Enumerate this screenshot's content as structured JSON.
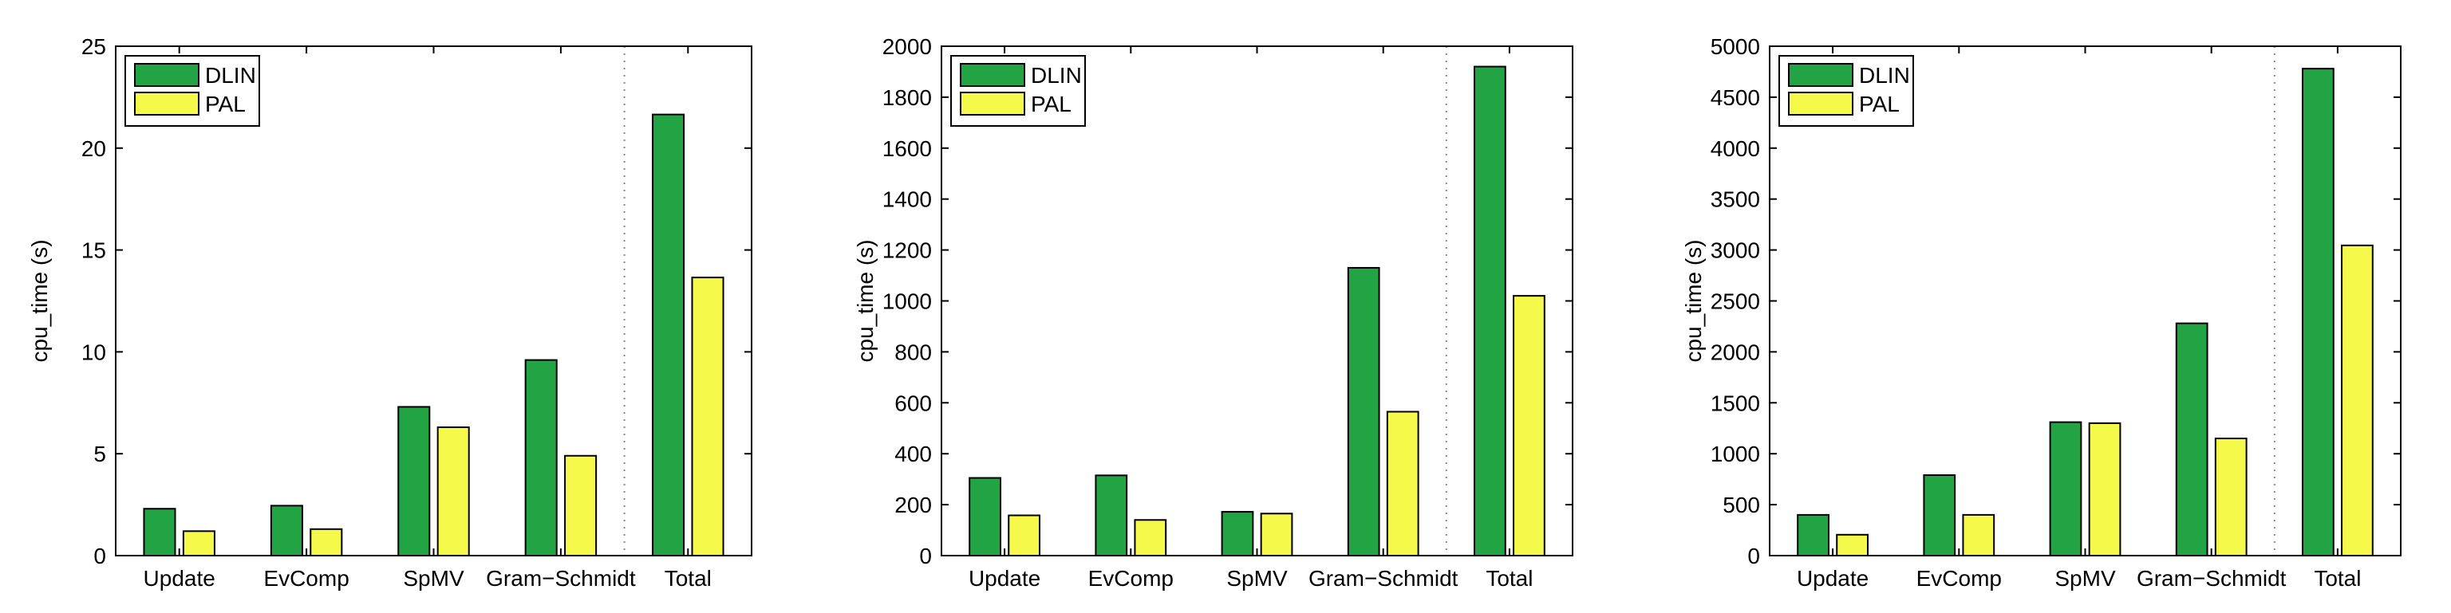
{
  "colors": {
    "dlin": "#22a444",
    "pal": "#f5fa4a"
  },
  "chart_data": [
    {
      "type": "bar",
      "categories": [
        "Update",
        "EvComp",
        "SpMV",
        "Gram−Schmidt",
        "Total"
      ],
      "series": [
        {
          "name": "DLIN",
          "values": [
            2.3,
            2.45,
            7.3,
            9.6,
            21.65
          ]
        },
        {
          "name": "PAL",
          "values": [
            1.2,
            1.3,
            6.3,
            4.9,
            13.65
          ]
        }
      ],
      "ylabel": "cpu_time (s)",
      "ylim": [
        0,
        25
      ],
      "yticks": [
        0,
        5,
        10,
        15,
        20,
        25
      ],
      "legend": "top-left",
      "separator_between": [
        "Gram−Schmidt",
        "Total"
      ]
    },
    {
      "type": "bar",
      "categories": [
        "Update",
        "EvComp",
        "SpMV",
        "Gram−Schmidt",
        "Total"
      ],
      "series": [
        {
          "name": "DLIN",
          "values": [
            305,
            315,
            172,
            1130,
            1920
          ]
        },
        {
          "name": "PAL",
          "values": [
            158,
            140,
            165,
            565,
            1020
          ]
        }
      ],
      "ylabel": "cpu_time (s)",
      "ylim": [
        0,
        2000
      ],
      "yticks": [
        0,
        200,
        400,
        600,
        800,
        1000,
        1200,
        1400,
        1600,
        1800,
        2000
      ],
      "legend": "top-left",
      "separator_between": [
        "Gram−Schmidt",
        "Total"
      ]
    },
    {
      "type": "bar",
      "categories": [
        "Update",
        "EvComp",
        "SpMV",
        "Gram−Schmidt",
        "Total"
      ],
      "series": [
        {
          "name": "DLIN",
          "values": [
            400,
            790,
            1310,
            2280,
            4780
          ]
        },
        {
          "name": "PAL",
          "values": [
            205,
            400,
            1300,
            1150,
            3045
          ]
        }
      ],
      "ylabel": "cpu_time (s)",
      "ylim": [
        0,
        5000
      ],
      "yticks": [
        0,
        500,
        1000,
        1500,
        2000,
        2500,
        3000,
        3500,
        4000,
        4500,
        5000
      ],
      "legend": "top-left",
      "separator_between": [
        "Gram−Schmidt",
        "Total"
      ]
    }
  ]
}
